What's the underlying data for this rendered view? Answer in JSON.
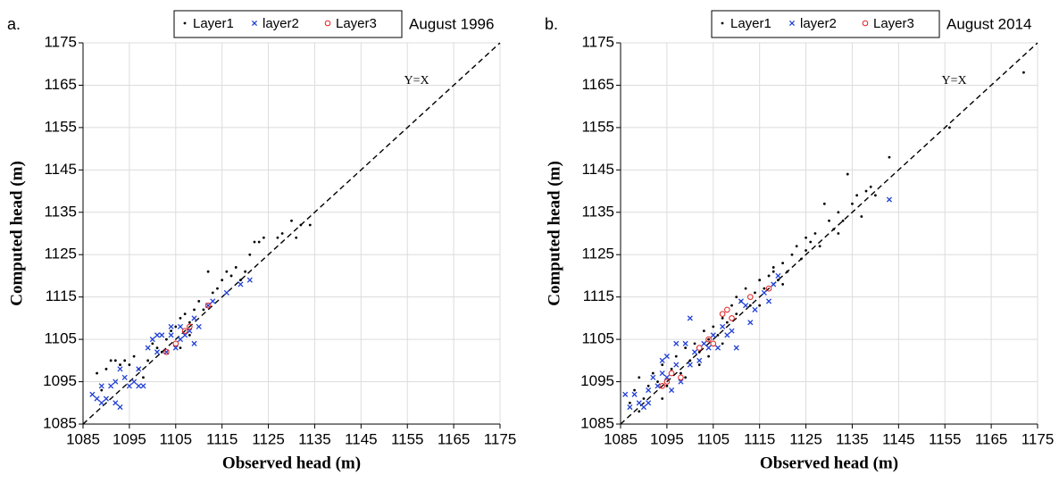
{
  "chart_data": [
    {
      "type": "scatter",
      "panel_label": "a.",
      "title": "August 1996",
      "xlabel": "Observed head (m)",
      "ylabel": "Computed head (m)",
      "xlim": [
        1085,
        1175
      ],
      "ylim": [
        1085,
        1175
      ],
      "xticks": [
        1085,
        1095,
        1105,
        1115,
        1125,
        1135,
        1145,
        1155,
        1165,
        1175
      ],
      "yticks": [
        1085,
        1095,
        1105,
        1115,
        1125,
        1135,
        1145,
        1155,
        1165,
        1175
      ],
      "grid": true,
      "reference_line": {
        "label": "Y=X"
      },
      "series": [
        {
          "name": "Layer1",
          "color": "#000000",
          "marker": "dot",
          "x": [
            1088,
            1089,
            1090,
            1091,
            1092,
            1093,
            1094,
            1095,
            1096,
            1097,
            1098,
            1099,
            1100,
            1101,
            1102,
            1103,
            1104,
            1105,
            1106,
            1107,
            1108,
            1109,
            1110,
            1111,
            1112,
            1113,
            1114,
            1115,
            1116,
            1117,
            1118,
            1119,
            1120,
            1121,
            1122,
            1123,
            1124,
            1127,
            1128,
            1130,
            1131,
            1132,
            1134,
            1106,
            1108
          ],
          "values": [
            1097,
            1093,
            1098,
            1100,
            1100,
            1099,
            1100,
            1099,
            1101,
            1098,
            1096,
            1100,
            1104,
            1103,
            1102,
            1105,
            1107,
            1108,
            1110,
            1111,
            1109,
            1112,
            1114,
            1112,
            1121,
            1116,
            1117,
            1119,
            1121,
            1120,
            1122,
            1119,
            1121,
            1125,
            1128,
            1128,
            1129,
            1129,
            1130,
            1133,
            1129,
            1132,
            1132,
            1103,
            1106
          ]
        },
        {
          "name": "layer2",
          "color": "#1f3fd6",
          "marker": "x",
          "x": [
            1087,
            1088,
            1089,
            1089,
            1090,
            1091,
            1092,
            1092,
            1093,
            1093,
            1094,
            1095,
            1096,
            1097,
            1098,
            1099,
            1100,
            1101,
            1102,
            1103,
            1104,
            1104,
            1105,
            1106,
            1106,
            1107,
            1108,
            1109,
            1109,
            1110,
            1112,
            1113,
            1116,
            1119,
            1121,
            1097,
            1101
          ],
          "values": [
            1092,
            1091,
            1094,
            1090,
            1091,
            1094,
            1090,
            1095,
            1098,
            1089,
            1096,
            1094,
            1095,
            1094,
            1094,
            1103,
            1105,
            1102,
            1106,
            1102,
            1106,
            1108,
            1103,
            1105,
            1108,
            1106,
            1107,
            1110,
            1104,
            1108,
            1113,
            1114,
            1116,
            1118,
            1119,
            1098,
            1106
          ]
        },
        {
          "name": "Layer3",
          "color": "#e02020",
          "marker": "circle",
          "x": [
            1103,
            1105,
            1108,
            1112,
            1107
          ],
          "values": [
            1102,
            1104,
            1108,
            1113,
            1107
          ]
        }
      ]
    },
    {
      "type": "scatter",
      "panel_label": "b.",
      "title": "August 2014",
      "xlabel": "Observed head (m)",
      "ylabel": "Computed head (m)",
      "xlim": [
        1085,
        1175
      ],
      "ylim": [
        1085,
        1175
      ],
      "xticks": [
        1085,
        1095,
        1105,
        1115,
        1125,
        1135,
        1145,
        1155,
        1165,
        1175
      ],
      "yticks": [
        1085,
        1095,
        1105,
        1115,
        1125,
        1135,
        1145,
        1155,
        1165,
        1175
      ],
      "grid": true,
      "reference_line": {
        "label": "Y=X"
      },
      "series": [
        {
          "name": "Layer1",
          "color": "#000000",
          "marker": "dot",
          "x": [
            1087,
            1088,
            1089,
            1090,
            1091,
            1092,
            1093,
            1094,
            1095,
            1096,
            1097,
            1098,
            1099,
            1100,
            1101,
            1102,
            1103,
            1104,
            1105,
            1106,
            1107,
            1108,
            1109,
            1110,
            1111,
            1112,
            1113,
            1114,
            1115,
            1116,
            1117,
            1118,
            1119,
            1120,
            1121,
            1122,
            1123,
            1124,
            1125,
            1126,
            1127,
            1128,
            1129,
            1130,
            1131,
            1132,
            1133,
            1134,
            1135,
            1136,
            1137,
            1138,
            1139,
            1140,
            1143,
            1156,
            1172,
            1099,
            1104,
            1110,
            1094,
            1089,
            1115,
            1120,
            1125,
            1132,
            1107,
            1102,
            1118
          ],
          "values": [
            1090,
            1093,
            1096,
            1091,
            1094,
            1097,
            1095,
            1099,
            1094,
            1098,
            1101,
            1097,
            1103,
            1100,
            1104,
            1102,
            1107,
            1105,
            1108,
            1106,
            1110,
            1109,
            1113,
            1111,
            1114,
            1117,
            1113,
            1116,
            1119,
            1117,
            1120,
            1122,
            1119,
            1123,
            1121,
            1125,
            1127,
            1124,
            1126,
            1128,
            1130,
            1127,
            1137,
            1133,
            1131,
            1135,
            1133,
            1144,
            1137,
            1139,
            1134,
            1140,
            1141,
            1139,
            1148,
            1155,
            1168,
            1096,
            1101,
            1115,
            1091,
            1088,
            1113,
            1118,
            1129,
            1130,
            1104,
            1099,
            1121
          ]
        },
        {
          "name": "layer2",
          "color": "#1f3fd6",
          "marker": "x",
          "x": [
            1086,
            1087,
            1088,
            1089,
            1090,
            1091,
            1092,
            1093,
            1094,
            1094,
            1095,
            1096,
            1097,
            1098,
            1099,
            1100,
            1100,
            1101,
            1102,
            1103,
            1104,
            1105,
            1106,
            1107,
            1108,
            1109,
            1110,
            1111,
            1112,
            1113,
            1114,
            1116,
            1117,
            1118,
            1119,
            1143,
            1095,
            1097,
            1091
          ],
          "values": [
            1092,
            1089,
            1092,
            1090,
            1089,
            1093,
            1096,
            1094,
            1100,
            1097,
            1096,
            1093,
            1099,
            1095,
            1104,
            1110,
            1099,
            1102,
            1100,
            1104,
            1103,
            1106,
            1103,
            1108,
            1106,
            1107,
            1103,
            1114,
            1113,
            1109,
            1112,
            1116,
            1114,
            1118,
            1120,
            1138,
            1101,
            1104,
            1090
          ]
        },
        {
          "name": "Layer3",
          "color": "#e02020",
          "marker": "circle",
          "x": [
            1094,
            1095,
            1096,
            1098,
            1102,
            1104,
            1107,
            1108,
            1109,
            1113,
            1117,
            1105
          ],
          "values": [
            1094,
            1095,
            1097,
            1096,
            1103,
            1105,
            1111,
            1112,
            1110,
            1115,
            1117,
            1104
          ]
        }
      ]
    }
  ]
}
